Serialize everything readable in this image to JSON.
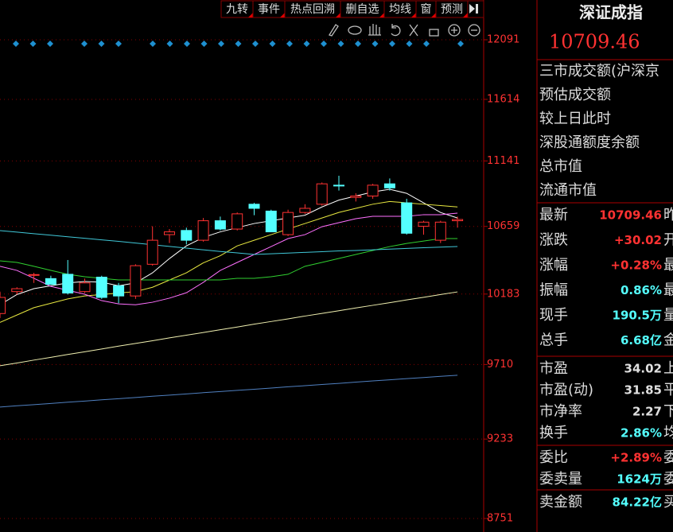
{
  "toolbar": [
    "九转",
    "事件",
    "热点回溯",
    "删自选",
    "均线",
    "窗",
    "预测"
  ],
  "chart_data": {
    "type": "candlestick",
    "log": true,
    "grid": true,
    "ylim": [
      8751,
      12091
    ],
    "yticks": [
      12091,
      11614,
      11141,
      10659,
      10183,
      9710,
      9233,
      8751
    ],
    "up_color": "#ff3232",
    "down_color": "#54ffff",
    "candles": [
      {
        "open": 10050,
        "high": 10200,
        "low": 10020,
        "close": 10160
      },
      {
        "open": 10200,
        "high": 10230,
        "low": 10180,
        "close": 10220
      },
      {
        "open": 10315,
        "high": 10330,
        "low": 10260,
        "close": 10318
      },
      {
        "open": 10290,
        "high": 10310,
        "low": 10250,
        "close": 10250
      },
      {
        "open": 10320,
        "high": 10420,
        "low": 10180,
        "close": 10190
      },
      {
        "open": 10200,
        "high": 10290,
        "low": 10190,
        "close": 10260
      },
      {
        "open": 10300,
        "high": 10310,
        "low": 10150,
        "close": 10160
      },
      {
        "open": 10240,
        "high": 10260,
        "low": 10120,
        "close": 10170
      },
      {
        "open": 10170,
        "high": 10390,
        "low": 10150,
        "close": 10380
      },
      {
        "open": 10390,
        "high": 10660,
        "low": 10380,
        "close": 10560
      },
      {
        "open": 10600,
        "high": 10640,
        "low": 10540,
        "close": 10620
      },
      {
        "open": 10630,
        "high": 10650,
        "low": 10530,
        "close": 10560
      },
      {
        "open": 10560,
        "high": 10720,
        "low": 10550,
        "close": 10700
      },
      {
        "open": 10700,
        "high": 10730,
        "low": 10630,
        "close": 10640
      },
      {
        "open": 10640,
        "high": 10760,
        "low": 10630,
        "close": 10750
      },
      {
        "open": 10820,
        "high": 10830,
        "low": 10740,
        "close": 10790
      },
      {
        "open": 10770,
        "high": 10780,
        "low": 10620,
        "close": 10620
      },
      {
        "open": 10600,
        "high": 10780,
        "low": 10590,
        "close": 10760
      },
      {
        "open": 10760,
        "high": 10820,
        "low": 10750,
        "close": 10790
      },
      {
        "open": 10820,
        "high": 10980,
        "low": 10810,
        "close": 10970
      },
      {
        "open": 10960,
        "high": 11030,
        "low": 10920,
        "close": 10955
      },
      {
        "open": 10870,
        "high": 10900,
        "low": 10840,
        "close": 10880
      },
      {
        "open": 10880,
        "high": 10970,
        "low": 10860,
        "close": 10960
      },
      {
        "open": 10970,
        "high": 11010,
        "low": 10920,
        "close": 10940
      },
      {
        "open": 10830,
        "high": 10860,
        "low": 10600,
        "close": 10610
      },
      {
        "open": 10660,
        "high": 10700,
        "low": 10600,
        "close": 10690
      },
      {
        "open": 10560,
        "high": 10700,
        "low": 10540,
        "close": 10690
      },
      {
        "open": 10700,
        "high": 10730,
        "low": 10650,
        "close": 10709
      }
    ],
    "series": [
      {
        "color": "#ffffff",
        "values": [
          10110,
          10180,
          10220,
          10240,
          10260,
          10270,
          10265,
          10240,
          10260,
          10330,
          10430,
          10520,
          10580,
          10620,
          10650,
          10680,
          10700,
          10720,
          10740,
          10800,
          10850,
          10880,
          10910,
          10930,
          10900,
          10830,
          10760,
          10720
        ]
      },
      {
        "color": "#e8e840",
        "values": [
          9990,
          10040,
          10090,
          10120,
          10150,
          10170,
          10180,
          10190,
          10200,
          10230,
          10280,
          10330,
          10400,
          10450,
          10520,
          10560,
          10600,
          10640,
          10680,
          10720,
          10760,
          10790,
          10820,
          10840,
          10830,
          10820,
          10810,
          10800
        ]
      },
      {
        "color": "#ff70ff",
        "values": [
          10376,
          10347,
          10292,
          10236,
          10209,
          10182,
          10138,
          10116,
          10110,
          10127,
          10155,
          10192,
          10264,
          10347,
          10403,
          10459,
          10515,
          10572,
          10600,
          10657,
          10686,
          10715,
          10732,
          10732,
          10732,
          10744,
          10744,
          10755
        ]
      },
      {
        "color": "#30d030",
        "values": [
          10414,
          10403,
          10376,
          10347,
          10320,
          10303,
          10292,
          10281,
          10281,
          10281,
          10281,
          10281,
          10281,
          10281,
          10292,
          10292,
          10303,
          10320,
          10376,
          10403,
          10431,
          10459,
          10487,
          10515,
          10537,
          10554,
          10572,
          10572
        ]
      },
      {
        "color": "#40c8d8",
        "values": [
          10629,
          10618,
          10607,
          10596,
          10585,
          10574,
          10563,
          10552,
          10540,
          10528,
          10516,
          10504,
          10492,
          10480,
          10470,
          10459,
          10464,
          10469,
          10474,
          10479,
          10484,
          10487,
          10492,
          10497,
          10502,
          10507,
          10511,
          10515
        ]
      },
      {
        "color": "#f0f0b0",
        "values": [
          9702,
          9720,
          9739,
          9757,
          9776,
          9794,
          9812,
          9831,
          9849,
          9867,
          9886,
          9904,
          9922,
          9941,
          9959,
          9978,
          9996,
          10014,
          10033,
          10051,
          10069,
          10088,
          10106,
          10124,
          10143,
          10161,
          10180,
          10198
        ]
      },
      {
        "color": "#5080c0",
        "values": [
          9435,
          9443,
          9450,
          9458,
          9466,
          9473,
          9481,
          9488,
          9496,
          9504,
          9511,
          9519,
          9527,
          9534,
          9542,
          9549,
          9557,
          9565,
          9572,
          9580,
          9587,
          9595,
          9603,
          9610,
          9618,
          9625,
          9633,
          9640
        ]
      }
    ]
  },
  "panel": {
    "title": "深证成指",
    "price": "10709.46",
    "info_rows": [
      "三市成交额(沪深京",
      "预估成交额",
      "较上日此时",
      "深股通额度余额",
      "总市值",
      "流通市值"
    ],
    "quote_groups": [
      [
        {
          "label": "最新",
          "value": "10709.46",
          "tail": "昨",
          "color": "#ff3232"
        },
        {
          "label": "涨跌",
          "value": "+30.02",
          "tail": "开",
          "color": "#ff3232"
        },
        {
          "label": "涨幅",
          "value": "+0.28%",
          "tail": "最",
          "color": "#ff3232"
        },
        {
          "label": "振幅",
          "value": "0.86%",
          "tail": "最",
          "color": "#54ffff"
        },
        {
          "label": "现手",
          "value": "190.5万",
          "tail": "量",
          "color": "#54ffff"
        },
        {
          "label": "总手",
          "value": "6.68亿",
          "tail": "金",
          "color": "#54ffff"
        }
      ],
      [
        {
          "label": "市盈",
          "value": "34.02",
          "tail": "上",
          "color": "#e0e0e0"
        },
        {
          "label": "市盈(动)",
          "value": "31.85",
          "tail": "平",
          "color": "#e0e0e0"
        },
        {
          "label": "市净率",
          "value": "2.27",
          "tail": "下",
          "color": "#e0e0e0"
        },
        {
          "label": "换手",
          "value": "2.86%",
          "tail": "均",
          "color": "#54ffff"
        }
      ],
      [
        {
          "label": "委比",
          "value": "+2.89%",
          "tail": "委",
          "color": "#ff3232"
        },
        {
          "label": "委卖量",
          "value": "1624万",
          "tail": "委",
          "color": "#54ffff"
        }
      ],
      [
        {
          "label": "卖金额",
          "value": "84.22亿",
          "tail": "买",
          "color": "#54ffff"
        }
      ]
    ]
  }
}
